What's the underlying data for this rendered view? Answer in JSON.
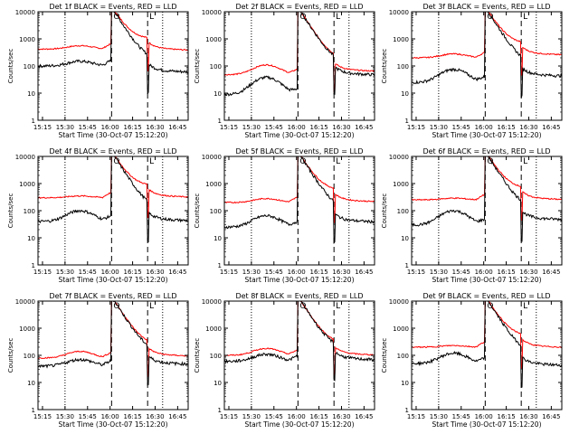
{
  "chart_data": {
    "type": "line",
    "layout": "3x3 grid",
    "y_scale": "log",
    "ylim": [
      1,
      10000
    ],
    "ylabel": "Counts/sec",
    "xlabel": "Start Time (30-Oct-07 15:12:20)",
    "x_ticks": [
      "15:15",
      "15:30",
      "15:45",
      "16:00",
      "16:15",
      "16:30",
      "16:45"
    ],
    "y_ticks": [
      "1",
      "10",
      "100",
      "1000",
      "10000"
    ],
    "series_colors": {
      "events": "#000000",
      "lld": "#ff0000"
    },
    "line_markers": {
      "dotted": [
        "15:30",
        "16:35"
      ],
      "dashed": [
        "16:01",
        "16:25"
      ],
      "marker_letters": [
        {
          "time": "16:01",
          "label": "O"
        },
        {
          "time": "16:25",
          "label": "L"
        }
      ]
    },
    "panels": [
      {
        "title": "Det 1f BLACK = Events, RED = LLD",
        "events_base": 100,
        "events_hump": 150,
        "events_post": 70,
        "lld_base": 420,
        "lld_hump": 560,
        "lld_post": 450
      },
      {
        "title": "Det 2f BLACK = Events, RED = LLD",
        "events_base": 9,
        "events_hump": 38,
        "events_post": 55,
        "lld_base": 48,
        "lld_hump": 110,
        "lld_post": 75
      },
      {
        "title": "Det 3f BLACK = Events, RED = LLD",
        "events_base": 25,
        "events_hump": 75,
        "events_post": 50,
        "lld_base": 200,
        "lld_hump": 280,
        "lld_post": 300
      },
      {
        "title": "Det 4f BLACK = Events, RED = LLD",
        "events_base": 40,
        "events_hump": 100,
        "events_post": 50,
        "lld_base": 300,
        "lld_hump": 350,
        "lld_post": 370
      },
      {
        "title": "Det 5f BLACK = Events, RED = LLD",
        "events_base": 25,
        "events_hump": 65,
        "events_post": 45,
        "lld_base": 200,
        "lld_hump": 280,
        "lld_post": 250
      },
      {
        "title": "Det 6f BLACK = Events, RED = LLD",
        "events_base": 30,
        "events_hump": 100,
        "events_post": 55,
        "lld_base": 250,
        "lld_hump": 290,
        "lld_post": 300
      },
      {
        "title": "Det 7f BLACK = Events, RED = LLD",
        "events_base": 40,
        "events_hump": 70,
        "events_post": 55,
        "lld_base": 80,
        "lld_hump": 140,
        "lld_post": 110
      },
      {
        "title": "Det 8f BLACK = Events, RED = LLD",
        "events_base": 60,
        "events_hump": 110,
        "events_post": 80,
        "lld_base": 100,
        "lld_hump": 180,
        "lld_post": 120
      },
      {
        "title": "Det 9f BLACK = Events, RED = LLD",
        "events_base": 50,
        "events_hump": 120,
        "events_post": 50,
        "lld_base": 200,
        "lld_hump": 230,
        "lld_post": 230
      }
    ]
  }
}
